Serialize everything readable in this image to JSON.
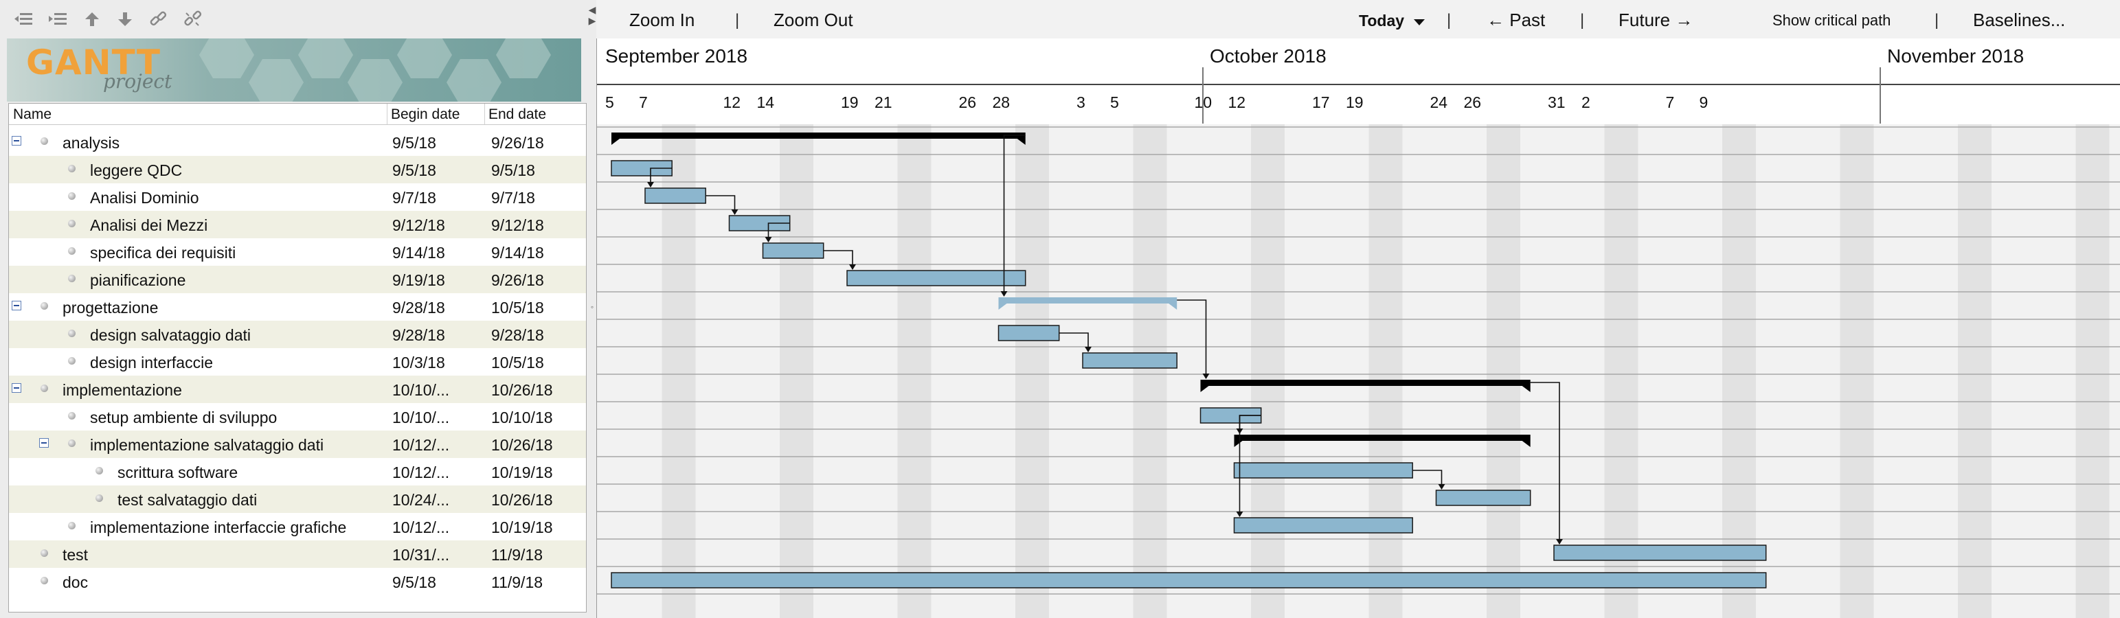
{
  "toolbar": {
    "icons": [
      "unindent-icon",
      "indent-icon",
      "move-up-icon",
      "move-down-icon",
      "link-icon",
      "unlink-icon"
    ],
    "logo": {
      "title": "GANTT",
      "subtitle": "project"
    }
  },
  "table": {
    "headers": {
      "name": "Name",
      "begin": "Begin date",
      "end": "End date"
    },
    "rows": [
      {
        "name": "analysis",
        "begin": "9/5/18",
        "end": "9/26/18",
        "level": 0,
        "group": true
      },
      {
        "name": "leggere QDC",
        "begin": "9/5/18",
        "end": "9/5/18",
        "level": 1,
        "group": false
      },
      {
        "name": "Analisi Dominio",
        "begin": "9/7/18",
        "end": "9/7/18",
        "level": 1,
        "group": false
      },
      {
        "name": "Analisi dei Mezzi",
        "begin": "9/12/18",
        "end": "9/12/18",
        "level": 1,
        "group": false
      },
      {
        "name": "specifica dei requisiti",
        "begin": "9/14/18",
        "end": "9/14/18",
        "level": 1,
        "group": false
      },
      {
        "name": "pianificazione",
        "begin": "9/19/18",
        "end": "9/26/18",
        "level": 1,
        "group": false
      },
      {
        "name": "progettazione",
        "begin": "9/28/18",
        "end": "10/5/18",
        "level": 0,
        "group": true
      },
      {
        "name": "design salvataggio dati",
        "begin": "9/28/18",
        "end": "9/28/18",
        "level": 1,
        "group": false
      },
      {
        "name": "design interfaccie",
        "begin": "10/3/18",
        "end": "10/5/18",
        "level": 1,
        "group": false
      },
      {
        "name": "implementazione",
        "begin": "10/10/...",
        "end": "10/26/18",
        "level": 0,
        "group": true
      },
      {
        "name": "setup ambiente di sviluppo",
        "begin": "10/10/...",
        "end": "10/10/18",
        "level": 1,
        "group": false
      },
      {
        "name": "implementazione salvataggio dati",
        "begin": "10/12/...",
        "end": "10/26/18",
        "level": 1,
        "group": true
      },
      {
        "name": "scrittura software",
        "begin": "10/12/...",
        "end": "10/19/18",
        "level": 2,
        "group": false
      },
      {
        "name": "test salvataggio dati",
        "begin": "10/24/...",
        "end": "10/26/18",
        "level": 2,
        "group": false
      },
      {
        "name": "implementazione interfaccie grafiche",
        "begin": "10/12/...",
        "end": "10/19/18",
        "level": 1,
        "group": false
      },
      {
        "name": "test",
        "begin": "10/31/...",
        "end": "11/9/18",
        "level": 0,
        "group": false
      },
      {
        "name": "doc",
        "begin": "9/5/18",
        "end": "11/9/18",
        "level": 0,
        "group": false
      }
    ]
  },
  "chart_toolbar": {
    "zoom_in": "Zoom In",
    "zoom_out": "Zoom Out",
    "today": "Today",
    "past": "← Past",
    "future": "Future →",
    "critical": "Show critical path",
    "baselines": "Baselines..."
  },
  "timeline": {
    "months": [
      "September 2018",
      "October 2018",
      "November 2018"
    ],
    "days": [
      "5",
      "7",
      "12",
      "14",
      "19",
      "21",
      "26",
      "28",
      "3",
      "5",
      "10",
      "12",
      "17",
      "19",
      "24",
      "26",
      "31",
      "2",
      "7",
      "9"
    ]
  },
  "gantt": {
    "bars": [
      {
        "row": 0,
        "start": "2018-09-05",
        "end": "2018-09-26",
        "kind": "summary"
      },
      {
        "row": 1,
        "start": "2018-09-05",
        "end": "2018-09-05",
        "kind": "task"
      },
      {
        "row": 2,
        "start": "2018-09-07",
        "end": "2018-09-07",
        "kind": "task"
      },
      {
        "row": 3,
        "start": "2018-09-12",
        "end": "2018-09-12",
        "kind": "task"
      },
      {
        "row": 4,
        "start": "2018-09-14",
        "end": "2018-09-14",
        "kind": "task"
      },
      {
        "row": 5,
        "start": "2018-09-19",
        "end": "2018-09-26",
        "kind": "task"
      },
      {
        "row": 6,
        "start": "2018-09-28",
        "end": "2018-10-05",
        "kind": "summary-light"
      },
      {
        "row": 7,
        "start": "2018-09-28",
        "end": "2018-09-28",
        "kind": "task"
      },
      {
        "row": 8,
        "start": "2018-10-03",
        "end": "2018-10-05",
        "kind": "task"
      },
      {
        "row": 9,
        "start": "2018-10-10",
        "end": "2018-10-26",
        "kind": "summary"
      },
      {
        "row": 10,
        "start": "2018-10-10",
        "end": "2018-10-10",
        "kind": "task"
      },
      {
        "row": 11,
        "start": "2018-10-12",
        "end": "2018-10-26",
        "kind": "summary"
      },
      {
        "row": 12,
        "start": "2018-10-12",
        "end": "2018-10-19",
        "kind": "task"
      },
      {
        "row": 13,
        "start": "2018-10-24",
        "end": "2018-10-26",
        "kind": "task"
      },
      {
        "row": 14,
        "start": "2018-10-12",
        "end": "2018-10-19",
        "kind": "task"
      },
      {
        "row": 15,
        "start": "2018-10-31",
        "end": "2018-11-09",
        "kind": "task"
      },
      {
        "row": 16,
        "start": "2018-09-05",
        "end": "2018-11-09",
        "kind": "task"
      }
    ],
    "links": [
      [
        1,
        2
      ],
      [
        2,
        3
      ],
      [
        3,
        4
      ],
      [
        4,
        5
      ],
      [
        0,
        6
      ],
      [
        7,
        8
      ],
      [
        6,
        9
      ],
      [
        10,
        11
      ],
      [
        12,
        13
      ],
      [
        10,
        14
      ],
      [
        9,
        15
      ]
    ],
    "colors": {
      "task": "#8cb6ce",
      "summary": "#000000",
      "summary_light": "#92b8d0",
      "weekend": "#e2e2e2",
      "grid": "#a8a8a8"
    }
  }
}
